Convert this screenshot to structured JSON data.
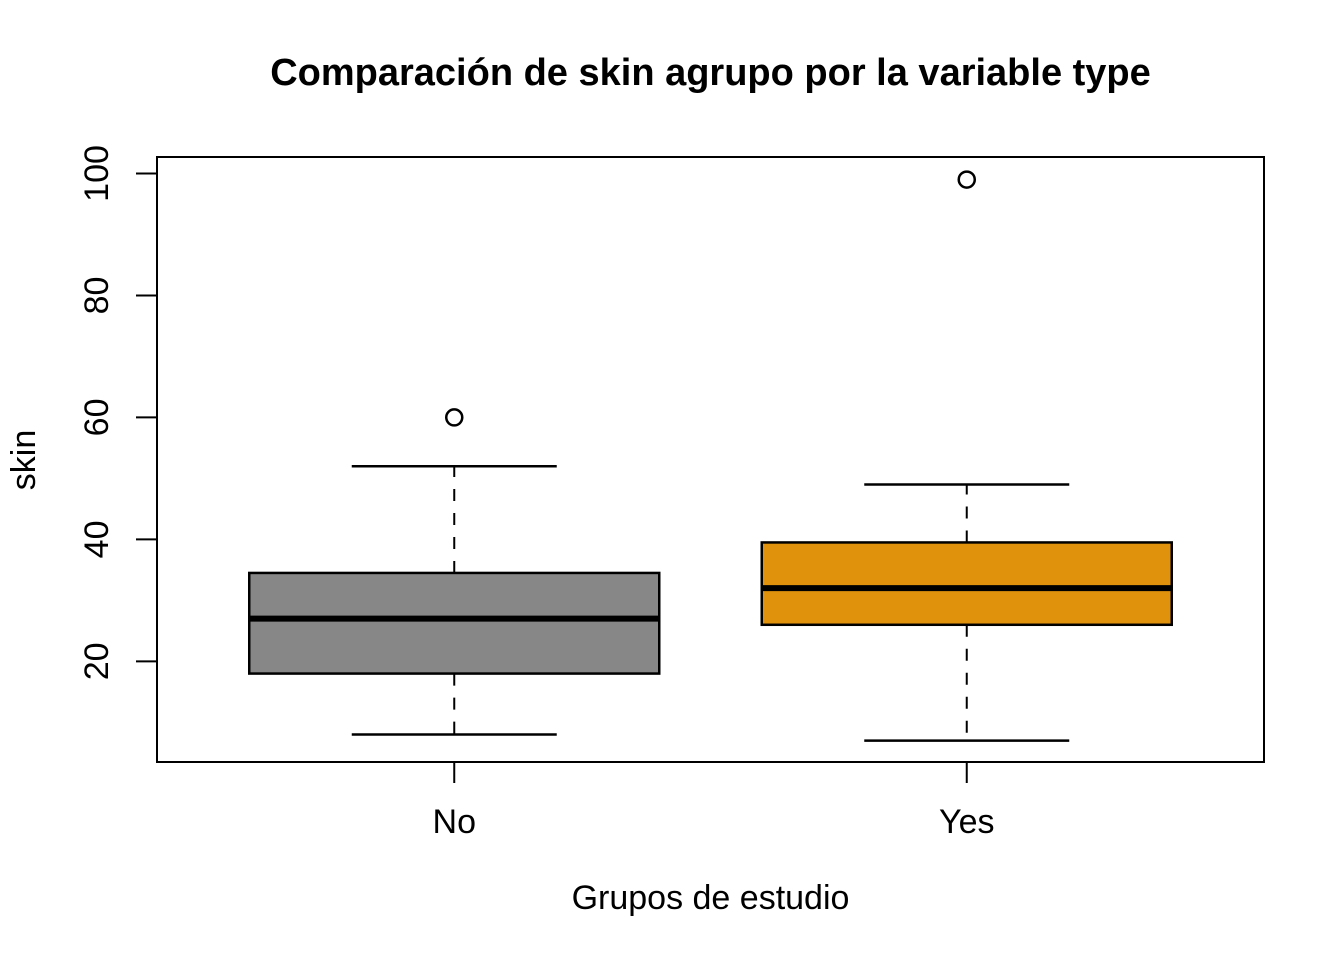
{
  "page": {
    "background": "#FFFFFF",
    "text_color": "#000000"
  },
  "chart_data": {
    "type": "boxplot",
    "title": "Comparación de skin agrupo por la variable type",
    "xlabel": "Grupos de estudio",
    "ylabel": "skin",
    "categories": [
      "No",
      "Yes"
    ],
    "x_positions": [
      1,
      2
    ],
    "xlim": [
      0.42,
      2.58
    ],
    "ylim": [
      3.5,
      102.7
    ],
    "y_ticks": [
      20,
      40,
      60,
      80,
      100
    ],
    "grid": false,
    "legend": false,
    "frame": true,
    "box_width": 0.8,
    "staple_width": 0.4,
    "stroke": "#000000",
    "series": [
      {
        "name": "No",
        "fill": "#878787",
        "whisker_low": 8,
        "q1": 18,
        "median": 27,
        "q3": 34.5,
        "whisker_high": 52,
        "outliers": [
          60
        ]
      },
      {
        "name": "Yes",
        "fill": "#E0920D",
        "whisker_low": 7,
        "q1": 26,
        "median": 32,
        "q3": 39.5,
        "whisker_high": 49,
        "outliers": [
          99
        ]
      }
    ]
  }
}
